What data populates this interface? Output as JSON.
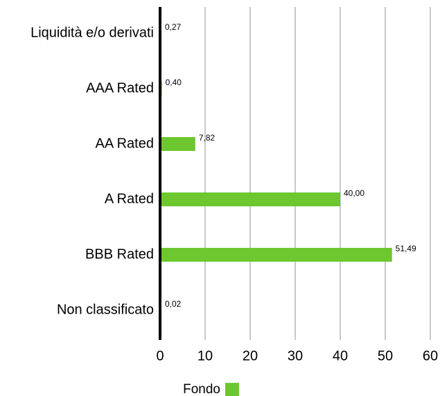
{
  "chart_data": {
    "type": "bar",
    "orientation": "horizontal",
    "categories": [
      "Liquidità e/o derivati",
      "AAA Rated",
      "AA Rated",
      "A Rated",
      "BBB Rated",
      "Non classificato"
    ],
    "series": [
      {
        "name": "Fondo",
        "color": "#6dc72f",
        "values": [
          0.27,
          0.4,
          7.82,
          40.0,
          51.49,
          0.02
        ],
        "labels": [
          "0,27",
          "0,40",
          "7,82",
          "40,00",
          "51,49",
          "0,02"
        ]
      }
    ],
    "xlim": [
      0,
      60
    ],
    "xticks": [
      "0",
      "10",
      "20",
      "30",
      "40",
      "50",
      "60"
    ],
    "grid": "vertical",
    "legend": "bottom-center"
  }
}
